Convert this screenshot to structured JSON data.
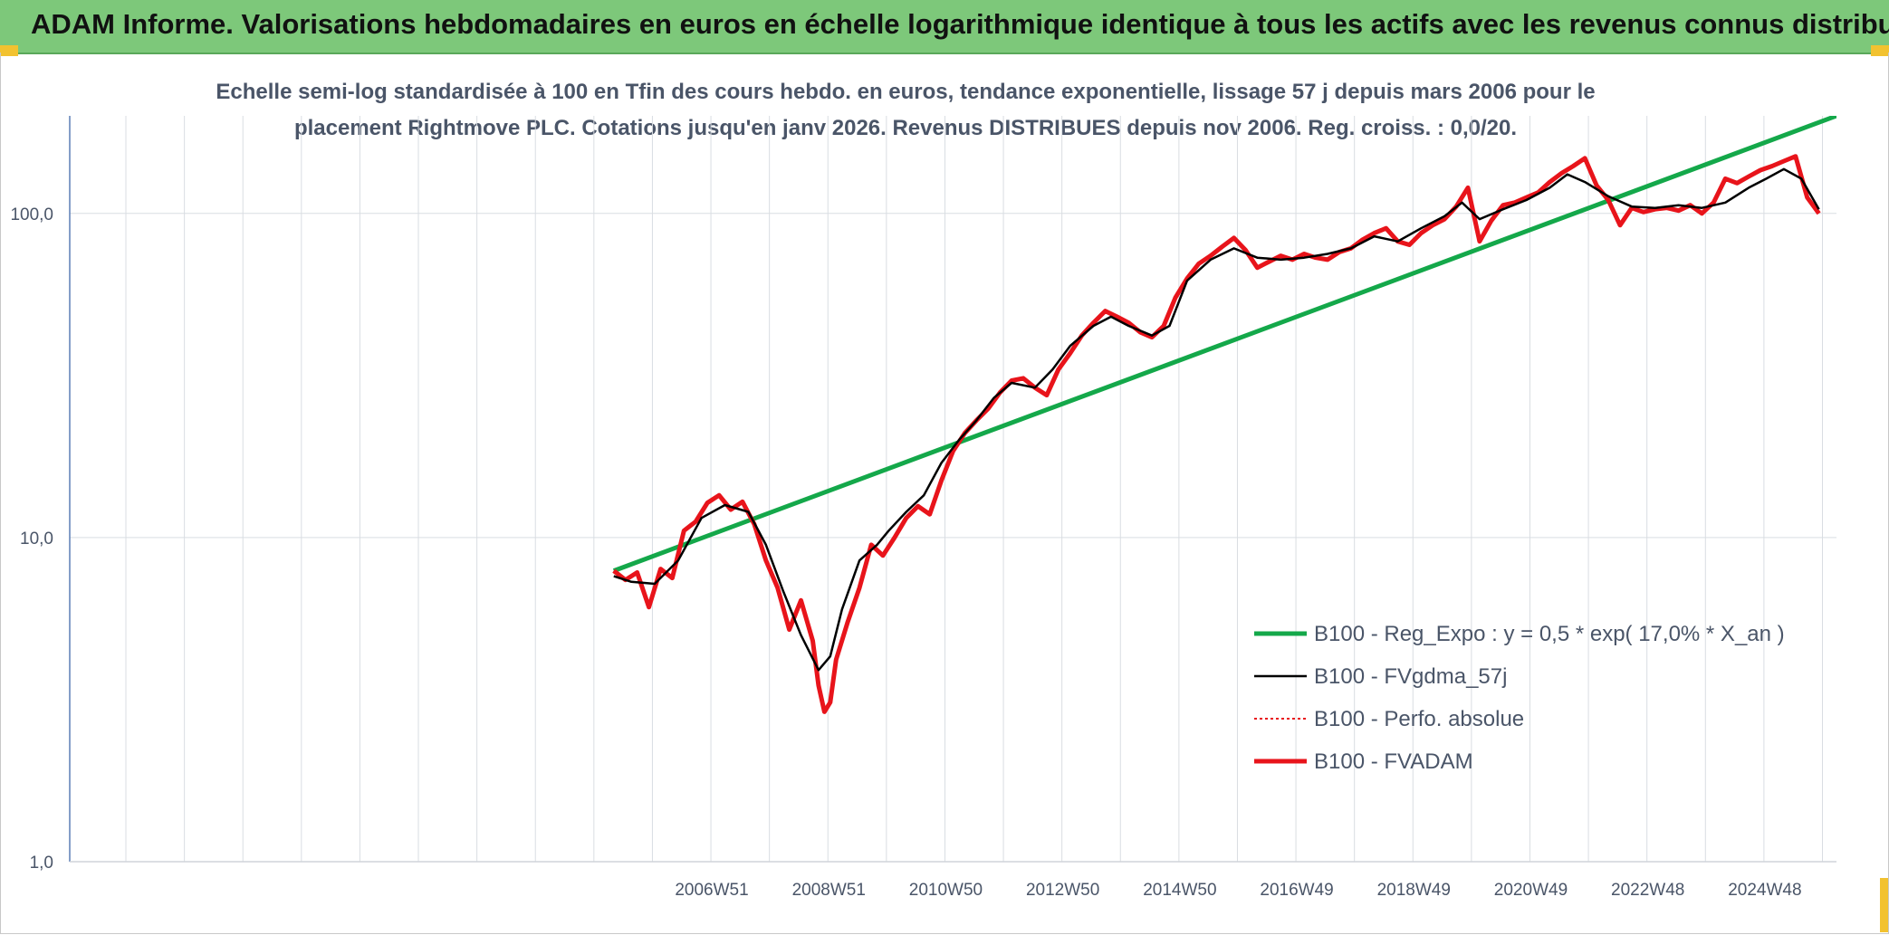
{
  "header": {
    "title": "ADAM Informe. Valorisations hebdomadaires en euros en échelle logarithmique identique à tous les actifs avec les revenus connus distribués"
  },
  "colors": {
    "banner": "#7dc87a",
    "green": "#14a84a",
    "black": "#000000",
    "red": "#e8141b",
    "grid": "#d9dde2",
    "text": "#4a5568"
  },
  "chart_data": {
    "type": "line",
    "subtitle_line1": "Echelle semi-log standardisée à 100 en Tfin des cours hebdo. en euros, tendance exponentielle, lissage 57 j depuis mars 2006 pour le",
    "subtitle_line2": "placement Rightmove PLC. Cotations jusqu'en janv 2026. Revenus DISTRIBUES depuis nov 2006. Reg. croiss. : 0,0/20.",
    "y_scale": "log",
    "ylim": [
      1,
      200
    ],
    "xlim": [
      1996.0,
      2026.2
    ],
    "y_ticks": [
      1,
      10,
      100
    ],
    "y_tick_labels": [
      "1,0",
      "10,0",
      "100,0"
    ],
    "x_ticks": [
      2006.96,
      2008.96,
      2010.96,
      2012.96,
      2014.96,
      2016.96,
      2018.96,
      2020.96,
      2022.96,
      2024.96
    ],
    "x_tick_labels": [
      "2006W51",
      "2008W51",
      "2010W50",
      "2012W50",
      "2014W50",
      "2016W49",
      "2018W49",
      "2020W49",
      "2022W48",
      "2024W48"
    ],
    "grid": true,
    "legend_position": "bottom-right",
    "series": [
      {
        "name": "B100 - Reg_Expo : y = 0,5 * exp( 17,0% *  X_an )",
        "color": "#14a84a",
        "style": "solid-thick",
        "x": [
          2005.3,
          2026.2
        ],
        "y": [
          7.9,
          200
        ]
      },
      {
        "name": "B100 - FVgdma_57j",
        "color": "#000000",
        "style": "solid",
        "x": [
          2005.3,
          2005.6,
          2006.0,
          2006.4,
          2006.8,
          2007.2,
          2007.6,
          2007.9,
          2008.2,
          2008.5,
          2008.8,
          2009.0,
          2009.2,
          2009.5,
          2009.8,
          2010.0,
          2010.3,
          2010.6,
          2010.9,
          2011.2,
          2011.5,
          2011.8,
          2012.1,
          2012.5,
          2012.8,
          2013.1,
          2013.5,
          2013.8,
          2014.1,
          2014.5,
          2014.8,
          2015.1,
          2015.5,
          2015.9,
          2016.3,
          2016.7,
          2017.1,
          2017.5,
          2017.9,
          2018.3,
          2018.7,
          2019.1,
          2019.5,
          2019.8,
          2020.1,
          2020.5,
          2020.9,
          2021.3,
          2021.6,
          2021.9,
          2022.3,
          2022.7,
          2023.1,
          2023.5,
          2023.9,
          2024.3,
          2024.7,
          2025.0,
          2025.3,
          2025.6,
          2025.9
        ],
        "y": [
          7.6,
          7.3,
          7.2,
          8.5,
          11.5,
          12.6,
          12.0,
          9.5,
          6.8,
          5.0,
          3.9,
          4.3,
          6.0,
          8.5,
          9.5,
          10.5,
          12.0,
          13.5,
          17.0,
          20.0,
          23.0,
          27.0,
          30.0,
          29.0,
          33.0,
          39.0,
          45.0,
          48.0,
          45.0,
          42.0,
          45.0,
          62.0,
          72.0,
          78.0,
          73.0,
          72.0,
          73.0,
          75.0,
          78.0,
          85.0,
          82.0,
          90.0,
          98.0,
          108.0,
          96.0,
          103.0,
          110.0,
          120.0,
          132.0,
          125.0,
          113.0,
          105.0,
          104.0,
          106.0,
          104.0,
          108.0,
          120.0,
          128.0,
          137.0,
          128.0,
          103.0
        ]
      },
      {
        "name": "B100 - Perfo. absolue",
        "color": "#e8141b",
        "style": "dotted",
        "x": [
          2005.3,
          2005.5,
          2005.7,
          2005.9,
          2006.1,
          2006.3,
          2006.5,
          2006.7,
          2006.9,
          2007.1,
          2007.3,
          2007.5,
          2007.7,
          2007.9,
          2008.1,
          2008.3,
          2008.5,
          2008.7,
          2008.8,
          2008.9,
          2009.0,
          2009.1,
          2009.3,
          2009.5,
          2009.7,
          2009.9,
          2010.1,
          2010.3,
          2010.5,
          2010.7,
          2010.9,
          2011.1,
          2011.3,
          2011.5,
          2011.7,
          2011.9,
          2012.1,
          2012.3,
          2012.5,
          2012.7,
          2012.9,
          2013.1,
          2013.3,
          2013.5,
          2013.7,
          2013.9,
          2014.1,
          2014.3,
          2014.5,
          2014.7,
          2014.9,
          2015.1,
          2015.3,
          2015.5,
          2015.7,
          2015.9,
          2016.1,
          2016.3,
          2016.5,
          2016.7,
          2016.9,
          2017.1,
          2017.3,
          2017.5,
          2017.7,
          2017.9,
          2018.1,
          2018.3,
          2018.5,
          2018.7,
          2018.9,
          2019.1,
          2019.3,
          2019.5,
          2019.7,
          2019.9,
          2020.1,
          2020.3,
          2020.5,
          2020.7,
          2020.9,
          2021.1,
          2021.3,
          2021.5,
          2021.7,
          2021.9,
          2022.1,
          2022.3,
          2022.5,
          2022.7,
          2022.9,
          2023.1,
          2023.3,
          2023.5,
          2023.7,
          2023.9,
          2024.1,
          2024.3,
          2024.5,
          2024.7,
          2024.9,
          2025.1,
          2025.3,
          2025.5,
          2025.7,
          2025.9
        ],
        "y": [
          7.9,
          7.4,
          7.8,
          6.1,
          8.0,
          7.5,
          10.5,
          11.2,
          12.8,
          13.5,
          12.2,
          12.9,
          11.0,
          8.5,
          7.0,
          5.2,
          6.4,
          4.8,
          3.5,
          2.9,
          3.1,
          4.2,
          5.5,
          7.0,
          9.5,
          8.8,
          10.0,
          11.5,
          12.5,
          11.8,
          15.0,
          18.5,
          21.0,
          23.0,
          25.0,
          28.0,
          30.5,
          31.0,
          29.0,
          27.5,
          33.0,
          37.0,
          42.0,
          46.0,
          50.0,
          48.0,
          46.0,
          43.0,
          41.5,
          45.0,
          55.0,
          63.0,
          70.0,
          74.0,
          79.0,
          84.0,
          77.0,
          68.0,
          71.0,
          74.0,
          72.0,
          75.0,
          73.0,
          72.0,
          76.0,
          78.0,
          83.0,
          87.0,
          90.0,
          82.0,
          80.0,
          87.0,
          92.0,
          96.0,
          105.0,
          120.0,
          82.0,
          95.0,
          106.0,
          108.0,
          112.0,
          116.0,
          125.0,
          133.0,
          140.0,
          148.0,
          122.0,
          110.0,
          92.0,
          104.0,
          101.0,
          103.0,
          104.0,
          102.0,
          106.0,
          100.0,
          108.0,
          128.0,
          124.0,
          130.0,
          136.0,
          140.0,
          145.0,
          150.0,
          112.0,
          100.0
        ]
      },
      {
        "name": "B100 - FVADAM",
        "color": "#e8141b",
        "style": "solid-thick",
        "x": [
          2005.3,
          2005.5,
          2005.7,
          2005.9,
          2006.1,
          2006.3,
          2006.5,
          2006.7,
          2006.9,
          2007.1,
          2007.3,
          2007.5,
          2007.7,
          2007.9,
          2008.1,
          2008.3,
          2008.5,
          2008.7,
          2008.8,
          2008.9,
          2009.0,
          2009.1,
          2009.3,
          2009.5,
          2009.7,
          2009.9,
          2010.1,
          2010.3,
          2010.5,
          2010.7,
          2010.9,
          2011.1,
          2011.3,
          2011.5,
          2011.7,
          2011.9,
          2012.1,
          2012.3,
          2012.5,
          2012.7,
          2012.9,
          2013.1,
          2013.3,
          2013.5,
          2013.7,
          2013.9,
          2014.1,
          2014.3,
          2014.5,
          2014.7,
          2014.9,
          2015.1,
          2015.3,
          2015.5,
          2015.7,
          2015.9,
          2016.1,
          2016.3,
          2016.5,
          2016.7,
          2016.9,
          2017.1,
          2017.3,
          2017.5,
          2017.7,
          2017.9,
          2018.1,
          2018.3,
          2018.5,
          2018.7,
          2018.9,
          2019.1,
          2019.3,
          2019.5,
          2019.7,
          2019.9,
          2020.1,
          2020.3,
          2020.5,
          2020.7,
          2020.9,
          2021.1,
          2021.3,
          2021.5,
          2021.7,
          2021.9,
          2022.1,
          2022.3,
          2022.5,
          2022.7,
          2022.9,
          2023.1,
          2023.3,
          2023.5,
          2023.7,
          2023.9,
          2024.1,
          2024.3,
          2024.5,
          2024.7,
          2024.9,
          2025.1,
          2025.3,
          2025.5,
          2025.7,
          2025.9
        ],
        "y": [
          7.9,
          7.4,
          7.8,
          6.1,
          8.0,
          7.5,
          10.5,
          11.2,
          12.8,
          13.5,
          12.2,
          12.9,
          11.0,
          8.5,
          7.0,
          5.2,
          6.4,
          4.8,
          3.5,
          2.9,
          3.1,
          4.2,
          5.5,
          7.0,
          9.5,
          8.8,
          10.0,
          11.5,
          12.5,
          11.8,
          15.0,
          18.5,
          21.0,
          23.0,
          25.0,
          28.0,
          30.5,
          31.0,
          29.0,
          27.5,
          33.0,
          37.0,
          42.0,
          46.0,
          50.0,
          48.0,
          46.0,
          43.0,
          41.5,
          45.0,
          55.0,
          63.0,
          70.0,
          74.0,
          79.0,
          84.0,
          77.0,
          68.0,
          71.0,
          74.0,
          72.0,
          75.0,
          73.0,
          72.0,
          76.0,
          78.0,
          83.0,
          87.0,
          90.0,
          82.0,
          80.0,
          87.0,
          92.0,
          96.0,
          105.0,
          120.0,
          82.0,
          95.0,
          106.0,
          108.0,
          112.0,
          116.0,
          125.0,
          133.0,
          140.0,
          148.0,
          122.0,
          110.0,
          92.0,
          104.0,
          101.0,
          103.0,
          104.0,
          102.0,
          106.0,
          100.0,
          108.0,
          128.0,
          124.0,
          130.0,
          136.0,
          140.0,
          145.0,
          150.0,
          112.0,
          100.0
        ]
      }
    ]
  }
}
